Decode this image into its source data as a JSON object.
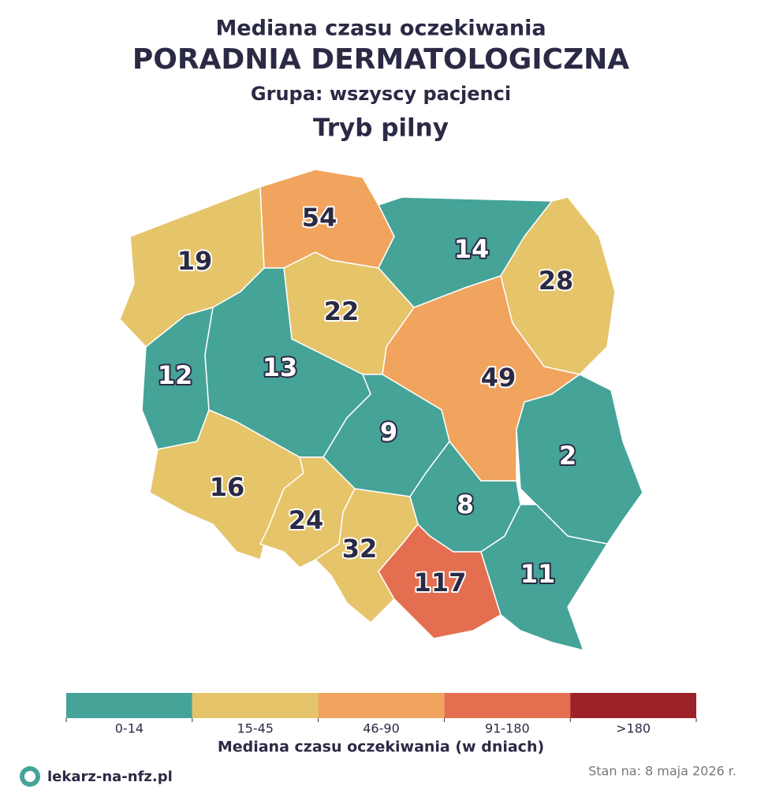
{
  "header": {
    "subtitle": "Mediana czasu oczekiwania",
    "title": "PORADNIA DERMATOLOGICZNA",
    "group": "Grupa: wszyscy pacjenci",
    "mode": "Tryb pilny"
  },
  "regions": [
    {
      "value": 19,
      "color": "#e6c46a"
    },
    {
      "value": 54,
      "color": "#f0a45e"
    },
    {
      "value": 14,
      "color": "#45a398"
    },
    {
      "value": 28,
      "color": "#e6c46a"
    },
    {
      "value": 22,
      "color": "#e6c46a"
    },
    {
      "value": 12,
      "color": "#45a398"
    },
    {
      "value": 13,
      "color": "#45a398"
    },
    {
      "value": 49,
      "color": "#f0a45e"
    },
    {
      "value": 9,
      "color": "#45a398"
    },
    {
      "value": 2,
      "color": "#45a398"
    },
    {
      "value": 16,
      "color": "#e6c46a"
    },
    {
      "value": 24,
      "color": "#e6c46a"
    },
    {
      "value": 32,
      "color": "#e6c46a"
    },
    {
      "value": 8,
      "color": "#45a398"
    },
    {
      "value": 117,
      "color": "#e46f50"
    },
    {
      "value": 11,
      "color": "#45a398"
    }
  ],
  "legend": {
    "title": "Mediana czasu oczekiwania (w dniach)",
    "items": [
      {
        "label": "0-14",
        "color": "#45a398"
      },
      {
        "label": "15-45",
        "color": "#e6c46a"
      },
      {
        "label": "46-90",
        "color": "#f0a45e"
      },
      {
        "label": "91-180",
        "color": "#e46f50"
      },
      {
        "label": ">180",
        "color": "#9b2226"
      }
    ]
  },
  "footer": {
    "brand": "lekarz-na-nfz.pl",
    "date": "Stan na: 8 maja 2026 r."
  }
}
